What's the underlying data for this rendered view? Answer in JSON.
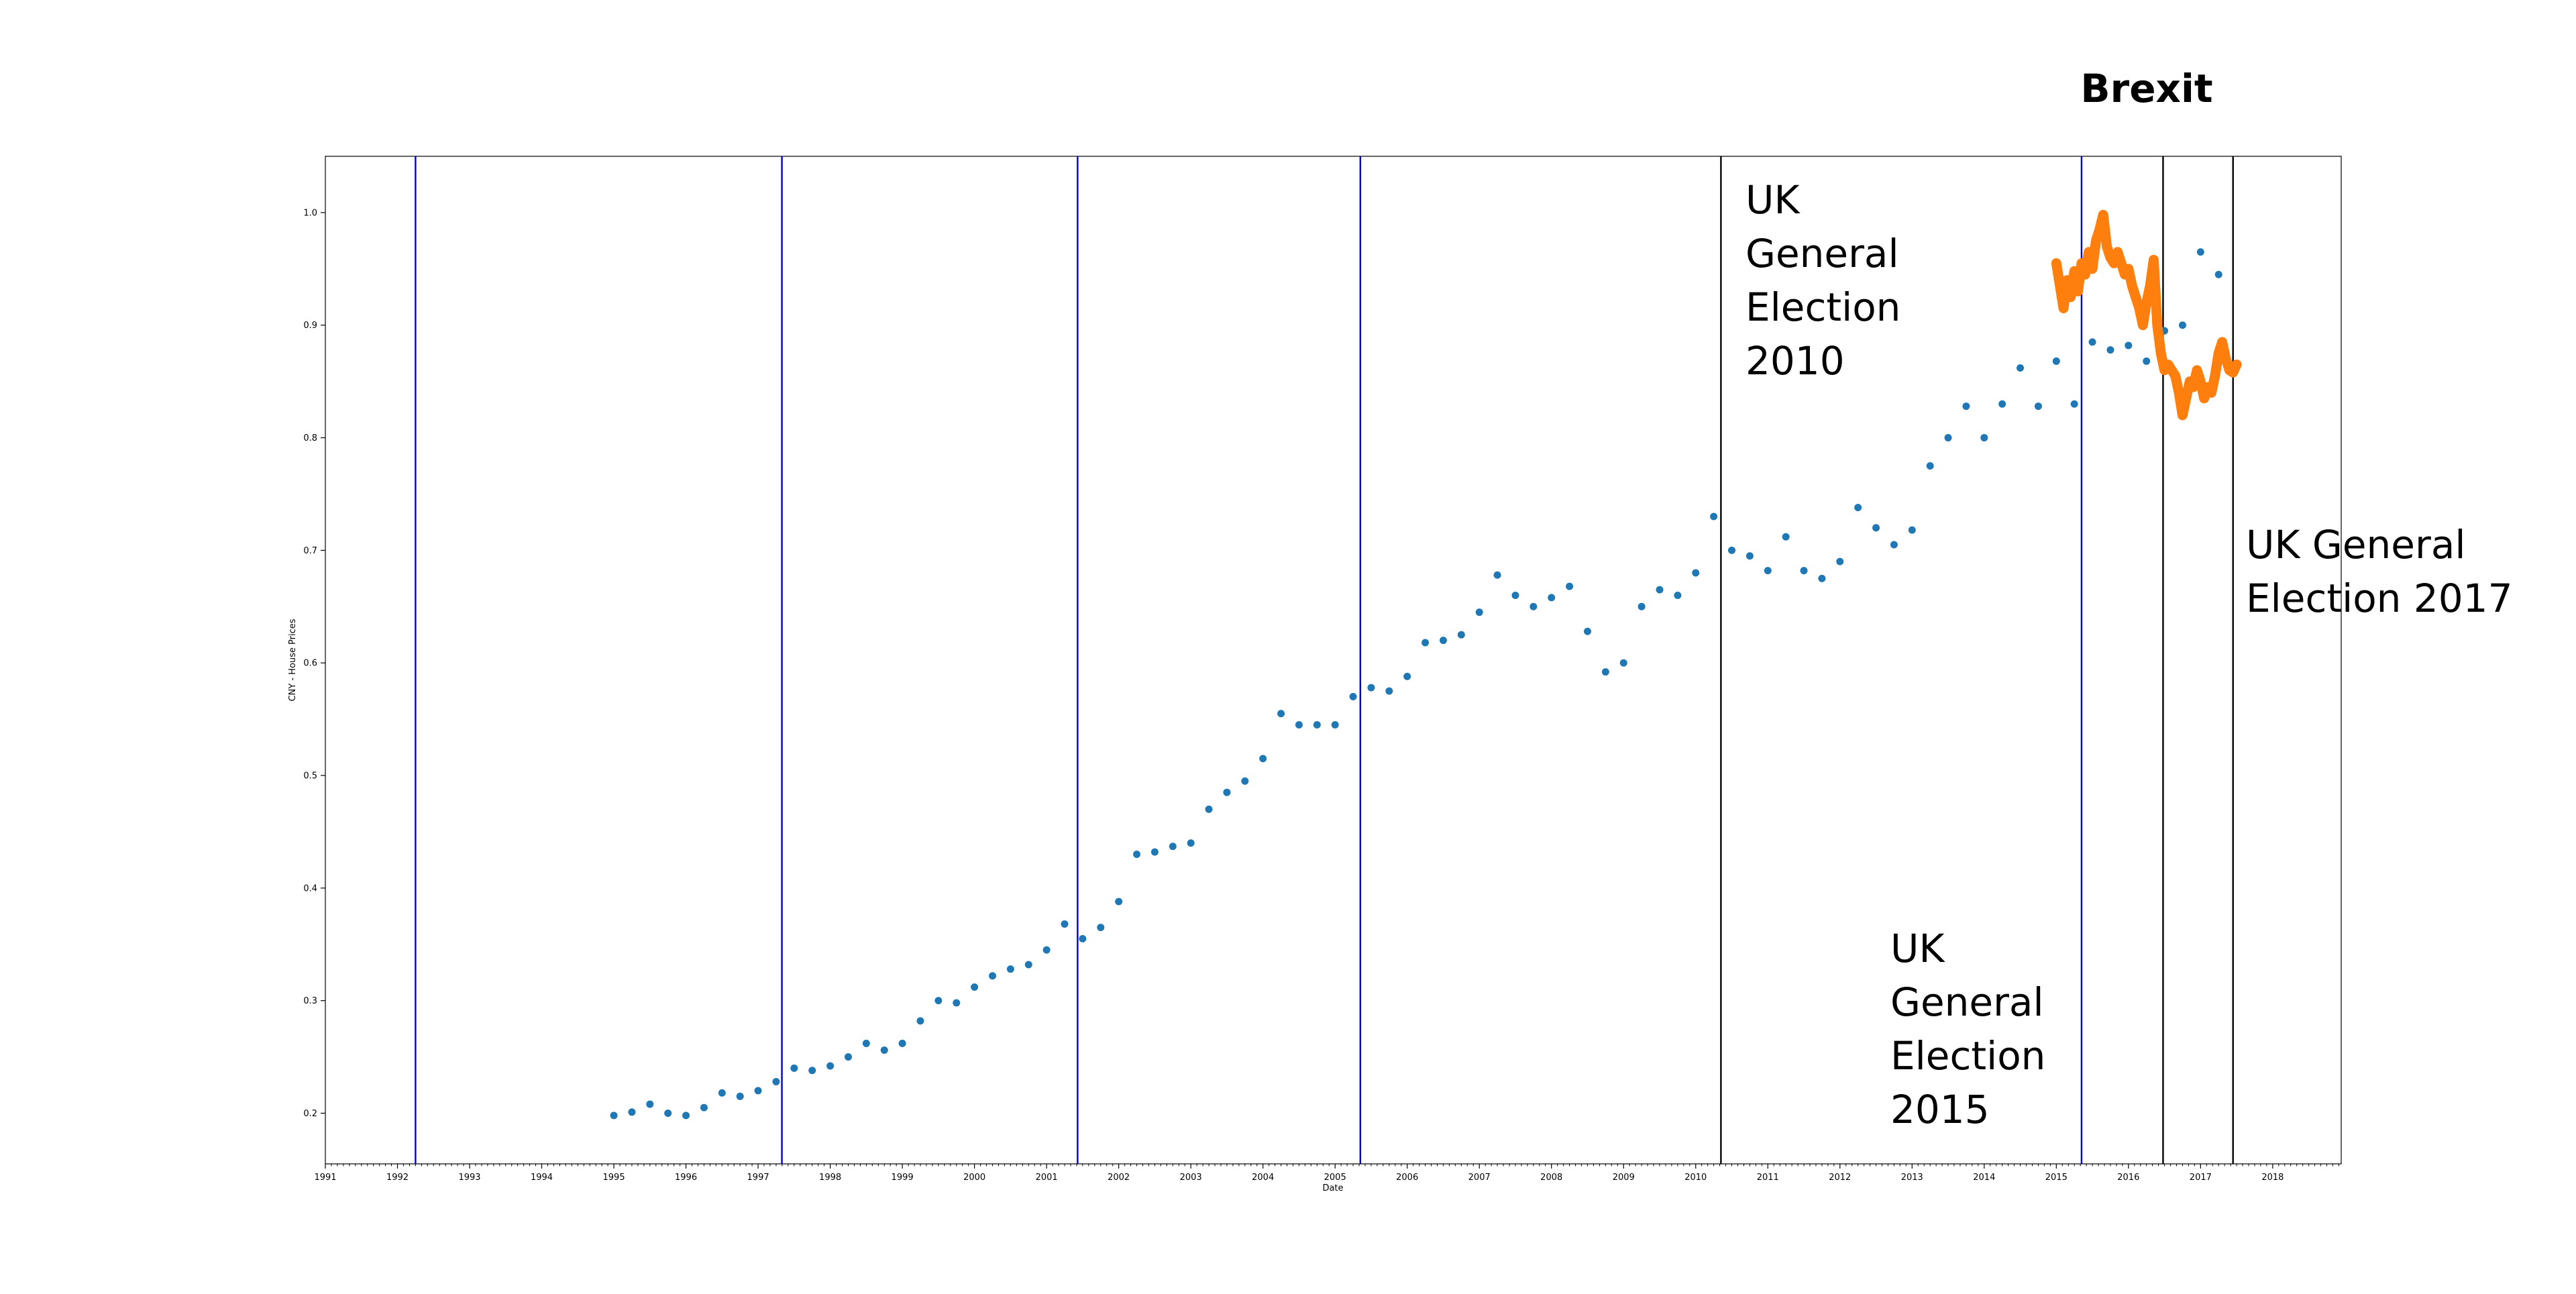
{
  "chart_data": {
    "type": "scatter",
    "title": "Brexit",
    "xlabel": "Date",
    "ylabel": "CNY   -    House Prices",
    "xlim": [
      1991.0,
      2018.95
    ],
    "ylim": [
      0.155,
      1.05
    ],
    "xticks": [
      1991,
      1992,
      1993,
      1994,
      1995,
      1996,
      1997,
      1998,
      1999,
      2000,
      2001,
      2002,
      2003,
      2004,
      2005,
      2006,
      2007,
      2008,
      2009,
      2010,
      2011,
      2012,
      2013,
      2014,
      2015,
      2016,
      2017,
      2018
    ],
    "yticks": [
      0.2,
      0.3,
      0.4,
      0.5,
      0.6,
      0.7,
      0.8,
      0.9,
      1.0
    ],
    "grid": false,
    "colors": {
      "house_prices": "#1f77b4",
      "cny": "#ff7f0e",
      "election_line": "#0000cc",
      "event_line": "#000000"
    },
    "series": [
      {
        "color": "#1f77b4",
        "x": [
          1995.0,
          1995.25,
          1995.5,
          1995.75,
          1996.0,
          1996.25,
          1996.5,
          1996.75,
          1997.0,
          1997.25,
          1997.5,
          1997.75,
          1998.0,
          1998.25,
          1998.5,
          1998.75,
          1999.0,
          1999.25,
          1999.5,
          1999.75,
          2000.0,
          2000.25,
          2000.5,
          2000.75,
          2001.0,
          2001.25,
          2001.5,
          2001.75,
          2002.0,
          2002.25,
          2002.5,
          2002.75,
          2003.0,
          2003.25,
          2003.5,
          2003.75,
          2004.0,
          2004.25,
          2004.5,
          2004.75,
          2005.0,
          2005.25,
          2005.5,
          2005.75,
          2006.0,
          2006.25,
          2006.5,
          2006.75,
          2007.0,
          2007.25,
          2007.5,
          2007.75,
          2008.0,
          2008.25,
          2008.5,
          2008.75,
          2009.0,
          2009.25,
          2009.5,
          2009.75,
          2010.0,
          2010.25,
          2010.5,
          2010.75,
          2011.0,
          2011.25,
          2011.5,
          2011.75,
          2012.0,
          2012.25,
          2012.5,
          2012.75,
          2013.0,
          2013.25,
          2013.5,
          2013.75,
          2014.0,
          2014.25,
          2014.5,
          2014.75,
          2015.0,
          2015.25,
          2015.5,
          2015.75,
          2016.0,
          2016.25,
          2016.5,
          2016.75,
          2017.0,
          2017.25
        ],
        "y": [
          0.198,
          0.201,
          0.208,
          0.2,
          0.198,
          0.205,
          0.218,
          0.215,
          0.22,
          0.228,
          0.24,
          0.238,
          0.242,
          0.25,
          0.262,
          0.256,
          0.262,
          0.282,
          0.3,
          0.298,
          0.312,
          0.322,
          0.328,
          0.332,
          0.345,
          0.368,
          0.355,
          0.365,
          0.388,
          0.43,
          0.432,
          0.437,
          0.44,
          0.47,
          0.485,
          0.495,
          0.515,
          0.555,
          0.545,
          0.545,
          0.545,
          0.57,
          0.578,
          0.575,
          0.588,
          0.618,
          0.62,
          0.625,
          0.645,
          0.678,
          0.66,
          0.65,
          0.658,
          0.668,
          0.628,
          0.592,
          0.6,
          0.65,
          0.665,
          0.66,
          0.68,
          0.73,
          0.7,
          0.695,
          0.682,
          0.712,
          0.682,
          0.675,
          0.69,
          0.738,
          0.72,
          0.705,
          0.718,
          0.775,
          0.8,
          0.828,
          0.8,
          0.83,
          0.862,
          0.828,
          0.868,
          0.83,
          0.885,
          0.878,
          0.882,
          0.868,
          0.895,
          0.9,
          0.965,
          0.945
        ]
      },
      {
        "color": "#ff7f0e",
        "x": [
          2015.0,
          2015.05,
          2015.1,
          2015.15,
          2015.2,
          2015.25,
          2015.3,
          2015.35,
          2015.4,
          2015.45,
          2015.5,
          2015.55,
          2015.6,
          2015.65,
          2015.7,
          2015.75,
          2015.8,
          2015.85,
          2015.9,
          2015.95,
          2016.0,
          2016.05,
          2016.1,
          2016.15,
          2016.2,
          2016.25,
          2016.3,
          2016.35,
          2016.4,
          2016.45,
          2016.5,
          2016.55,
          2016.6,
          2016.65,
          2016.7,
          2016.75,
          2016.8,
          2016.85,
          2016.9,
          2016.95,
          2017.0,
          2017.05,
          2017.1,
          2017.15,
          2017.2,
          2017.25,
          2017.3,
          2017.35,
          2017.4,
          2017.45,
          2017.5
        ],
        "y": [
          0.955,
          0.935,
          0.915,
          0.94,
          0.925,
          0.948,
          0.93,
          0.955,
          0.945,
          0.965,
          0.95,
          0.975,
          0.985,
          0.998,
          0.97,
          0.96,
          0.955,
          0.965,
          0.955,
          0.945,
          0.95,
          0.935,
          0.925,
          0.915,
          0.9,
          0.92,
          0.935,
          0.958,
          0.9,
          0.875,
          0.86,
          0.865,
          0.86,
          0.855,
          0.84,
          0.82,
          0.835,
          0.85,
          0.845,
          0.86,
          0.85,
          0.835,
          0.845,
          0.84,
          0.855,
          0.875,
          0.885,
          0.87,
          0.86,
          0.858,
          0.865
        ]
      }
    ],
    "vlines": [
      {
        "x": 1992.25,
        "color": "#0000cc"
      },
      {
        "x": 1997.33,
        "color": "#0000cc"
      },
      {
        "x": 2001.43,
        "color": "#0000cc"
      },
      {
        "x": 2005.35,
        "color": "#0000cc"
      },
      {
        "x": 2010.35,
        "color": "#000000"
      },
      {
        "x": 2015.35,
        "color": "#0000cc"
      },
      {
        "x": 2016.48,
        "color": "#000000"
      },
      {
        "x": 2017.45,
        "color": "#000000"
      }
    ],
    "annotations": [
      {
        "lines": [
          "UK",
          "General",
          "Election",
          "2010"
        ]
      },
      {
        "lines": [
          "UK",
          "General",
          "Election",
          "2015"
        ]
      },
      {
        "lines": [
          "UK General",
          "Election 2017"
        ]
      }
    ]
  }
}
